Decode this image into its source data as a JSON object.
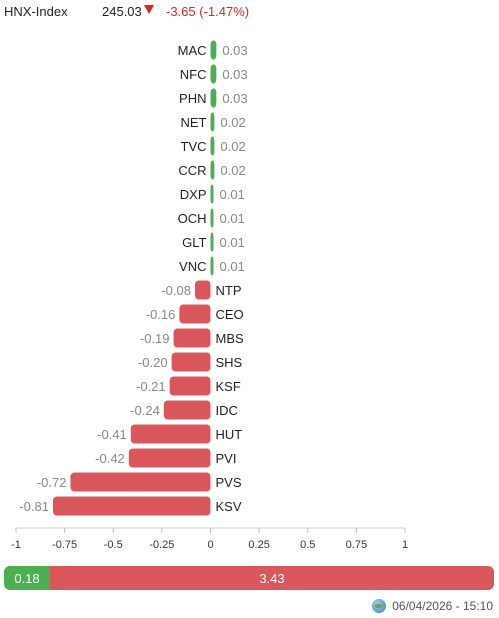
{
  "header": {
    "index_name": "HNX-Index",
    "index_value": "245.03",
    "index_change": "-3.65 (-1.47%)",
    "direction_icon": "triangle-down-icon",
    "down_color": "#d9261c"
  },
  "chart_data": {
    "type": "bar",
    "orientation": "horizontal",
    "categories": [
      "MAC",
      "NFC",
      "PHN",
      "NET",
      "TVC",
      "CCR",
      "DXP",
      "OCH",
      "GLT",
      "VNC",
      "NTP",
      "CEO",
      "MBS",
      "SHS",
      "KSF",
      "IDC",
      "HUT",
      "PVI",
      "PVS",
      "KSV"
    ],
    "values": [
      0.03,
      0.03,
      0.03,
      0.02,
      0.02,
      0.02,
      0.01,
      0.01,
      0.01,
      0.01,
      -0.08,
      -0.16,
      -0.19,
      -0.2,
      -0.21,
      -0.24,
      -0.41,
      -0.42,
      -0.72,
      -0.81
    ],
    "value_labels": [
      "0.03",
      "0.03",
      "0.03",
      "0.02",
      "0.02",
      "0.02",
      "0.01",
      "0.01",
      "0.01",
      "0.01",
      "-0.08",
      "-0.16",
      "-0.19",
      "-0.20",
      "-0.21",
      "-0.24",
      "-0.41",
      "-0.42",
      "-0.72",
      "-0.81"
    ],
    "xlim": [
      -1,
      1
    ],
    "xticks": [
      -1,
      -0.75,
      -0.5,
      -0.25,
      0,
      0.25,
      0.5,
      0.75,
      1
    ],
    "xtick_labels": [
      "-1",
      "-0.75",
      "-0.5",
      "-0.25",
      "0",
      "0.25",
      "0.5",
      "0.75",
      "1"
    ],
    "positive_color": "#4caf50",
    "negative_color": "#d9575b",
    "grid": false
  },
  "summary_bar": {
    "up_total": 0.18,
    "up_label": "0.18",
    "down_total": 3.43,
    "down_label": "3.43"
  },
  "timestamp": {
    "icon": "globe-icon",
    "text": "06/04/2026 - 15:10"
  }
}
